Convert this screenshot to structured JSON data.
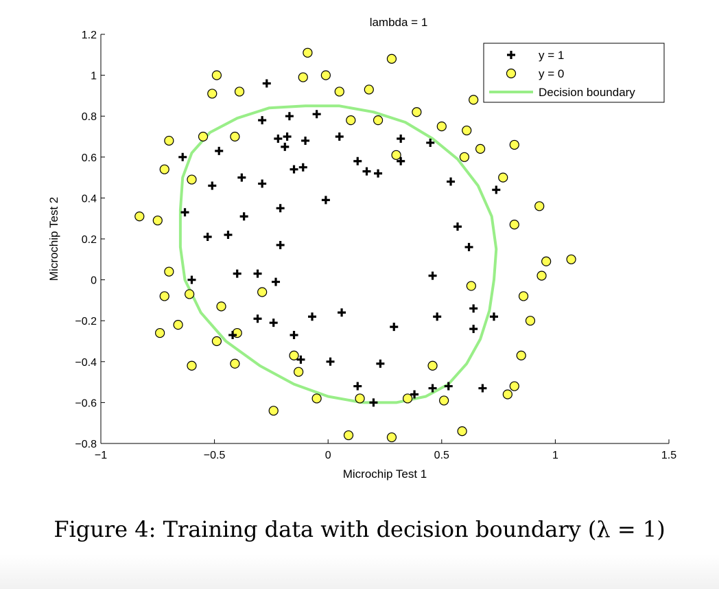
{
  "chart_data": {
    "type": "scatter",
    "title": "lambda = 1",
    "xlabel": "Microchip Test 1",
    "ylabel": "Microchip Test 2",
    "xlim": [
      -1,
      1.5
    ],
    "ylim": [
      -0.8,
      1.2
    ],
    "xticks": [
      -1,
      -0.5,
      0,
      0.5,
      1,
      1.5
    ],
    "xtick_labels": [
      "−1",
      "−0.5",
      "0",
      "0.5",
      "1",
      "1.5"
    ],
    "yticks": [
      -0.8,
      -0.6,
      -0.4,
      -0.2,
      0,
      0.2,
      0.4,
      0.6,
      0.8,
      1,
      1.2
    ],
    "ytick_labels": [
      "−0.8",
      "−0.6",
      "−0.4",
      "−0.2",
      "0",
      "0.2",
      "0.4",
      "0.6",
      "0.8",
      "1",
      "1.2"
    ],
    "legend": {
      "position": "top-right",
      "entries": [
        "y = 1",
        "y = 0",
        "Decision boundary"
      ]
    },
    "colors": {
      "positive": "#000000",
      "negative_fill": "#ffff55",
      "boundary": "#99ee88"
    },
    "series": [
      {
        "name": "y = 1",
        "marker": "plus",
        "points": [
          [
            -0.27,
            0.96
          ],
          [
            -0.29,
            0.78
          ],
          [
            -0.17,
            0.8
          ],
          [
            -0.05,
            0.81
          ],
          [
            -0.22,
            0.69
          ],
          [
            -0.18,
            0.7
          ],
          [
            -0.19,
            0.65
          ],
          [
            -0.1,
            0.68
          ],
          [
            0.05,
            0.7
          ],
          [
            -0.48,
            0.63
          ],
          [
            -0.64,
            0.6
          ],
          [
            -0.15,
            0.54
          ],
          [
            -0.11,
            0.55
          ],
          [
            0.13,
            0.58
          ],
          [
            0.17,
            0.53
          ],
          [
            0.22,
            0.52
          ],
          [
            0.32,
            0.69
          ],
          [
            0.32,
            0.58
          ],
          [
            0.45,
            0.67
          ],
          [
            -0.51,
            0.46
          ],
          [
            -0.38,
            0.5
          ],
          [
            -0.29,
            0.47
          ],
          [
            0.54,
            0.48
          ],
          [
            0.74,
            0.44
          ],
          [
            -0.21,
            0.35
          ],
          [
            -0.01,
            0.39
          ],
          [
            -0.63,
            0.33
          ],
          [
            -0.37,
            0.31
          ],
          [
            0.57,
            0.26
          ],
          [
            -0.53,
            0.21
          ],
          [
            -0.44,
            0.22
          ],
          [
            -0.21,
            0.17
          ],
          [
            0.62,
            0.16
          ],
          [
            -0.4,
            0.03
          ],
          [
            -0.31,
            0.03
          ],
          [
            -0.23,
            -0.01
          ],
          [
            -0.6,
            0.0
          ],
          [
            0.46,
            0.02
          ],
          [
            -0.31,
            -0.19
          ],
          [
            -0.24,
            -0.21
          ],
          [
            -0.07,
            -0.18
          ],
          [
            0.06,
            -0.16
          ],
          [
            0.48,
            -0.18
          ],
          [
            0.64,
            -0.14
          ],
          [
            0.73,
            -0.18
          ],
          [
            0.29,
            -0.23
          ],
          [
            -0.42,
            -0.27
          ],
          [
            -0.15,
            -0.27
          ],
          [
            -0.12,
            -0.39
          ],
          [
            0.01,
            -0.4
          ],
          [
            0.23,
            -0.41
          ],
          [
            0.64,
            -0.24
          ],
          [
            0.13,
            -0.52
          ],
          [
            0.2,
            -0.6
          ],
          [
            0.38,
            -0.56
          ],
          [
            0.46,
            -0.53
          ],
          [
            0.53,
            -0.52
          ],
          [
            0.68,
            -0.53
          ]
        ]
      },
      {
        "name": "y = 0",
        "marker": "circle",
        "points": [
          [
            -0.09,
            1.11
          ],
          [
            0.28,
            1.08
          ],
          [
            -0.49,
            1.0
          ],
          [
            -0.11,
            0.99
          ],
          [
            -0.01,
            1.0
          ],
          [
            -0.51,
            0.91
          ],
          [
            -0.39,
            0.92
          ],
          [
            0.05,
            0.92
          ],
          [
            0.18,
            0.93
          ],
          [
            0.64,
            0.88
          ],
          [
            0.39,
            0.82
          ],
          [
            0.1,
            0.78
          ],
          [
            0.22,
            0.78
          ],
          [
            0.5,
            0.75
          ],
          [
            0.61,
            0.73
          ],
          [
            -0.55,
            0.7
          ],
          [
            -0.41,
            0.7
          ],
          [
            -0.7,
            0.68
          ],
          [
            0.67,
            0.64
          ],
          [
            0.82,
            0.66
          ],
          [
            0.3,
            0.61
          ],
          [
            0.6,
            0.6
          ],
          [
            -0.72,
            0.54
          ],
          [
            -0.6,
            0.49
          ],
          [
            0.77,
            0.5
          ],
          [
            0.93,
            0.36
          ],
          [
            -0.83,
            0.31
          ],
          [
            -0.75,
            0.29
          ],
          [
            0.82,
            0.27
          ],
          [
            0.96,
            0.09
          ],
          [
            1.07,
            0.1
          ],
          [
            -0.7,
            0.04
          ],
          [
            0.94,
            0.02
          ],
          [
            -0.29,
            -0.06
          ],
          [
            -0.72,
            -0.08
          ],
          [
            -0.61,
            -0.07
          ],
          [
            0.63,
            -0.03
          ],
          [
            0.86,
            -0.08
          ],
          [
            -0.47,
            -0.13
          ],
          [
            -0.66,
            -0.22
          ],
          [
            0.89,
            -0.2
          ],
          [
            -0.74,
            -0.26
          ],
          [
            -0.4,
            -0.26
          ],
          [
            -0.49,
            -0.3
          ],
          [
            0.85,
            -0.37
          ],
          [
            -0.15,
            -0.37
          ],
          [
            -0.6,
            -0.42
          ],
          [
            -0.41,
            -0.41
          ],
          [
            0.46,
            -0.42
          ],
          [
            -0.13,
            -0.45
          ],
          [
            -0.05,
            -0.58
          ],
          [
            0.14,
            -0.58
          ],
          [
            0.35,
            -0.58
          ],
          [
            0.51,
            -0.59
          ],
          [
            0.79,
            -0.56
          ],
          [
            0.82,
            -0.52
          ],
          [
            -0.24,
            -0.64
          ],
          [
            0.59,
            -0.74
          ],
          [
            0.09,
            -0.76
          ],
          [
            0.28,
            -0.77
          ]
        ]
      }
    ],
    "boundary": [
      [
        -0.1,
        0.85
      ],
      [
        0.05,
        0.85
      ],
      [
        0.2,
        0.82
      ],
      [
        0.34,
        0.77
      ],
      [
        0.46,
        0.69
      ],
      [
        0.57,
        0.59
      ],
      [
        0.66,
        0.46
      ],
      [
        0.72,
        0.31
      ],
      [
        0.74,
        0.15
      ],
      [
        0.73,
        0.0
      ],
      [
        0.71,
        -0.15
      ],
      [
        0.67,
        -0.29
      ],
      [
        0.61,
        -0.41
      ],
      [
        0.53,
        -0.51
      ],
      [
        0.43,
        -0.57
      ],
      [
        0.3,
        -0.6
      ],
      [
        0.15,
        -0.6
      ],
      [
        0.0,
        -0.57
      ],
      [
        -0.15,
        -0.51
      ],
      [
        -0.3,
        -0.42
      ],
      [
        -0.45,
        -0.3
      ],
      [
        -0.56,
        -0.16
      ],
      [
        -0.63,
        0.0
      ],
      [
        -0.65,
        0.16
      ],
      [
        -0.65,
        0.34
      ],
      [
        -0.64,
        0.5
      ],
      [
        -0.6,
        0.62
      ],
      [
        -0.52,
        0.72
      ],
      [
        -0.4,
        0.79
      ],
      [
        -0.26,
        0.84
      ],
      [
        -0.1,
        0.85
      ]
    ]
  },
  "caption": "Figure 4: Training data with decision boundary (λ = 1)"
}
